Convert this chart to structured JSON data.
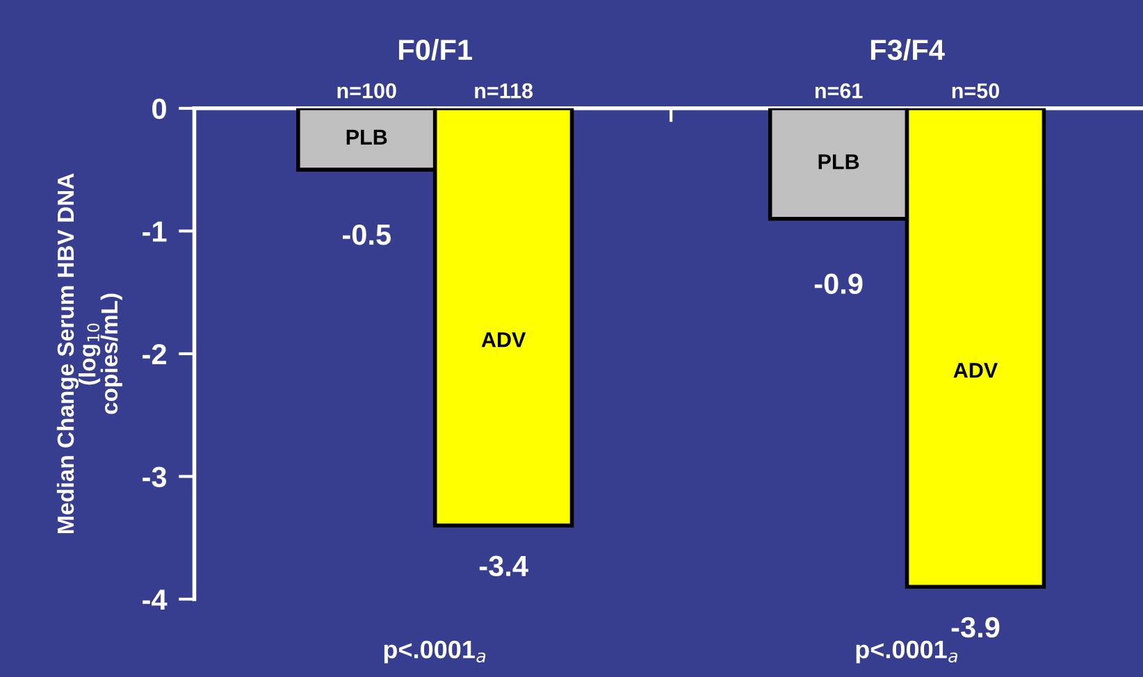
{
  "chart_data": {
    "type": "bar",
    "categories": [
      "F0/F1",
      "F3/F4"
    ],
    "ylabel": "Median Change Serum HBV DNA\n(log$_{10}$\ncopies/mL)",
    "series": [
      {
        "name": "PLB",
        "color": "#c0c0c0",
        "values": [
          -0.5,
          -0.9
        ]
      },
      {
        "name": "ADV",
        "color": "#ffff00",
        "values": [
          -3.4,
          -3.9
        ]
      }
    ],
    "data_labels": true,
    "ylim": [
      -4,
      0
    ],
    "yticks": [
      0,
      -1,
      -2,
      -3,
      -4
    ],
    "grid": false,
    "legend": false,
    "annotations": [
      "n=100",
      "n=118",
      "n=61",
      "n=50",
      "p<.0001$_{a}$",
      "p<.0001$_{a}$"
    ]
  }
}
